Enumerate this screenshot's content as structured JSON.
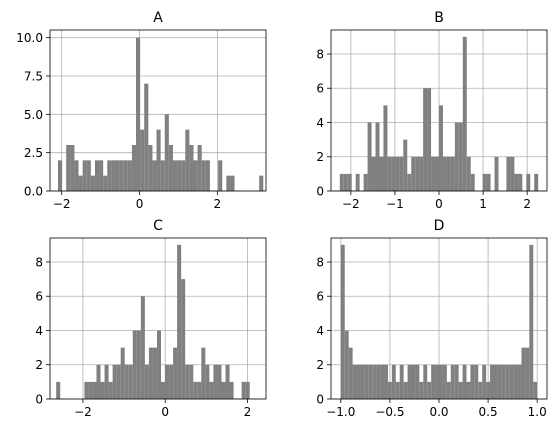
{
  "figure": {
    "background": "#ffffff",
    "bar_color": "#808080",
    "grid_color": "#b0b0b0",
    "frame_color": "#000000"
  },
  "chart_data": [
    {
      "type": "bar",
      "title": "A",
      "xlabel": "",
      "ylabel": "",
      "xlim": [
        -2.3,
        3.25
      ],
      "ylim": [
        0,
        10.5
      ],
      "grid": true,
      "x_ticks": [
        -2,
        0,
        2
      ],
      "x_tick_labels": [
        "−2",
        "0",
        "2"
      ],
      "y_ticks": [
        0,
        2.5,
        5,
        7.5,
        10
      ],
      "y_tick_labels": [
        "0.0",
        "2.5",
        "5.0",
        "7.5",
        "10.0"
      ],
      "bin_edges_start": -2.2,
      "bin_width": 0.1055,
      "values": [
        0,
        2,
        0,
        3,
        3,
        2,
        1,
        2,
        2,
        1,
        2,
        2,
        1,
        2,
        2,
        2,
        2,
        2,
        2,
        3,
        10,
        4,
        7,
        3,
        2,
        4,
        2,
        5,
        3,
        2,
        2,
        2,
        4,
        3,
        2,
        3,
        2,
        2,
        0,
        0,
        2,
        0,
        1,
        1,
        0,
        0,
        0,
        0,
        0,
        0,
        1
      ]
    },
    {
      "type": "bar",
      "title": "B",
      "xlabel": "",
      "ylabel": "",
      "xlim": [
        -2.45,
        2.45
      ],
      "ylim": [
        0,
        9.4
      ],
      "grid": true,
      "x_ticks": [
        -2,
        -1,
        0,
        1,
        2
      ],
      "x_tick_labels": [
        "−2",
        "−1",
        "0",
        "1",
        "2"
      ],
      "y_ticks": [
        0,
        2,
        4,
        6,
        8
      ],
      "y_tick_labels": [
        "0",
        "2",
        "4",
        "6",
        "8"
      ],
      "bin_edges_start": -2.25,
      "bin_width": 0.09,
      "values": [
        1,
        1,
        1,
        0,
        1,
        0,
        1,
        4,
        2,
        4,
        2,
        5,
        2,
        2,
        2,
        2,
        3,
        1,
        2,
        2,
        2,
        6,
        6,
        2,
        2,
        5,
        2,
        2,
        2,
        4,
        4,
        9,
        2,
        1,
        0,
        0,
        1,
        1,
        0,
        2,
        0,
        0,
        2,
        2,
        1,
        1,
        0,
        1,
        0,
        1
      ]
    },
    {
      "type": "bar",
      "title": "C",
      "xlabel": "",
      "ylabel": "",
      "xlim": [
        -2.8,
        2.45
      ],
      "ylim": [
        0,
        9.4
      ],
      "grid": true,
      "x_ticks": [
        -2,
        0,
        2
      ],
      "x_tick_labels": [
        "−2",
        "0",
        "2"
      ],
      "y_ticks": [
        0,
        2,
        4,
        6,
        8
      ],
      "y_tick_labels": [
        "0",
        "2",
        "4",
        "6",
        "8"
      ],
      "bin_edges_start": -2.65,
      "bin_width": 0.098,
      "values": [
        1,
        0,
        0,
        0,
        0,
        0,
        0,
        1,
        1,
        1,
        2,
        1,
        2,
        1,
        2,
        2,
        3,
        2,
        2,
        4,
        4,
        6,
        2,
        3,
        3,
        4,
        1,
        2,
        2,
        3,
        9,
        7,
        2,
        2,
        1,
        1,
        3,
        2,
        1,
        2,
        2,
        1,
        2,
        1,
        0,
        0,
        1,
        1,
        0,
        0
      ]
    },
    {
      "type": "bar",
      "title": "D",
      "xlabel": "",
      "ylabel": "",
      "xlim": [
        -1.1,
        1.1
      ],
      "ylim": [
        0,
        9.4
      ],
      "grid": true,
      "x_ticks": [
        -1,
        -0.5,
        0,
        0.5,
        1
      ],
      "x_tick_labels": [
        "−1.0",
        "−0.5",
        "0.0",
        "0.5",
        "1.0"
      ],
      "y_ticks": [
        0,
        2,
        4,
        6,
        8
      ],
      "y_tick_labels": [
        "0",
        "2",
        "4",
        "6",
        "8"
      ],
      "bin_edges_start": -1.0,
      "bin_width": 0.04,
      "values": [
        9,
        4,
        3,
        2,
        2,
        2,
        2,
        2,
        2,
        2,
        2,
        2,
        1,
        2,
        1,
        2,
        1,
        2,
        2,
        2,
        1,
        2,
        1,
        2,
        2,
        2,
        2,
        1,
        2,
        2,
        1,
        2,
        1,
        2,
        2,
        1,
        2,
        1,
        2,
        2,
        2,
        2,
        2,
        2,
        2,
        2,
        3,
        3,
        9,
        1
      ]
    }
  ]
}
